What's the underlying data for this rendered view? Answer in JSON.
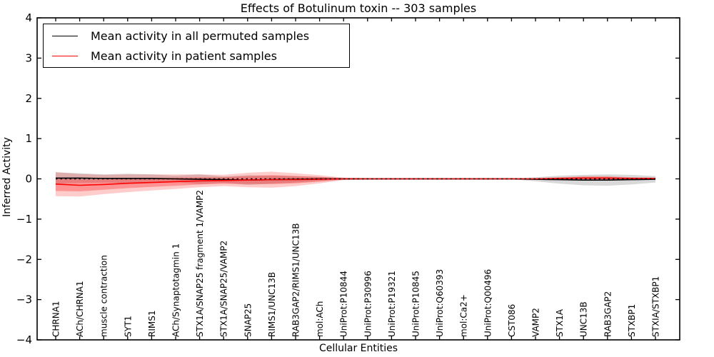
{
  "figure": {
    "title": "Effects of Botulinum toxin -- 303 samples",
    "xlabel": "Cellular Entities",
    "ylabel": "Inferred Activity"
  },
  "legend": {
    "position": "upper left",
    "entries": [
      {
        "label": "Mean activity in all permuted samples",
        "color": "#000000"
      },
      {
        "label": "Mean activity in patient samples",
        "color": "#ff0000"
      }
    ]
  },
  "chart_data": {
    "type": "line",
    "title": "Effects of Botulinum toxin -- 303 samples",
    "xlabel": "Cellular Entities",
    "ylabel": "Inferred Activity",
    "ylim": [
      -4,
      4
    ],
    "yticks": [
      4,
      3,
      2,
      1,
      0,
      -1,
      -2,
      -3,
      -4
    ],
    "grid": false,
    "legend_position": "upper left",
    "zero_line": {
      "y": 0,
      "style": "dashed",
      "color": "#000000"
    },
    "band_colors": {
      "permuted": "rgba(0,0,0,0.15)",
      "patient_outer": "rgba(255,0,0,0.20)",
      "patient_inner": "rgba(255,0,0,0.28)"
    },
    "categories": [
      "CHRNA1",
      "ACh/CHRNA1",
      "muscle contraction",
      "SYT1",
      "RIMS1",
      "ACh/Synaptotagmin 1",
      "STX1A/SNAP25 fragment 1/VAMP2",
      "STX1A/SNAP25/VAMP2",
      "SNAP25",
      "RIMS1/UNC13B",
      "RAB3GAP2/RIMS1/UNC13B",
      "mol:ACh",
      "UniProt:P10844",
      "UniProt:P30996",
      "UniProt:P19321",
      "UniProt:P10845",
      "UniProt:Q60393",
      "mol:Ca2+",
      "UniProt:Q00496",
      "CST086",
      "VAMP2",
      "STX1A",
      "UNC13B",
      "RAB3GAP2",
      "STXBP1",
      "STXIA/STXBP1"
    ],
    "series": [
      {
        "name": "Mean activity in all permuted samples",
        "color": "#000000",
        "mean": [
          0.02,
          0.02,
          0.01,
          0.01,
          0.01,
          0.0,
          -0.01,
          -0.02,
          -0.03,
          -0.02,
          -0.01,
          0.0,
          0.0,
          0.0,
          0.0,
          0.0,
          0.0,
          0.0,
          0.0,
          0.0,
          -0.01,
          -0.02,
          -0.03,
          -0.03,
          -0.02,
          -0.01
        ],
        "std": [
          0.14,
          0.12,
          0.1,
          0.12,
          0.1,
          0.08,
          0.12,
          0.08,
          0.12,
          0.1,
          0.08,
          0.05,
          0.02,
          0.01,
          0.01,
          0.01,
          0.01,
          0.01,
          0.01,
          0.01,
          0.05,
          0.1,
          0.13,
          0.14,
          0.12,
          0.08
        ]
      },
      {
        "name": "Mean activity in patient samples",
        "color": "#ff0000",
        "mean": [
          -0.13,
          -0.16,
          -0.14,
          -0.11,
          -0.09,
          -0.07,
          -0.05,
          -0.04,
          -0.03,
          -0.02,
          -0.02,
          -0.01,
          0.0,
          0.0,
          0.0,
          0.0,
          0.0,
          0.0,
          0.0,
          0.0,
          0.0,
          0.01,
          0.02,
          0.02,
          0.01,
          0.01
        ],
        "std": [
          0.3,
          0.28,
          0.24,
          0.22,
          0.2,
          0.18,
          0.16,
          0.14,
          0.18,
          0.2,
          0.16,
          0.1,
          0.03,
          0.02,
          0.02,
          0.02,
          0.02,
          0.02,
          0.02,
          0.02,
          0.02,
          0.03,
          0.05,
          0.05,
          0.03,
          0.02
        ],
        "std_inner": [
          0.17,
          0.15,
          0.13,
          0.12,
          0.11,
          0.1,
          0.09,
          0.08,
          0.1,
          0.11,
          0.09,
          0.06,
          0.02,
          0.01,
          0.01,
          0.01,
          0.01,
          0.01,
          0.01,
          0.01,
          0.01,
          0.02,
          0.03,
          0.03,
          0.02,
          0.01
        ]
      }
    ]
  }
}
